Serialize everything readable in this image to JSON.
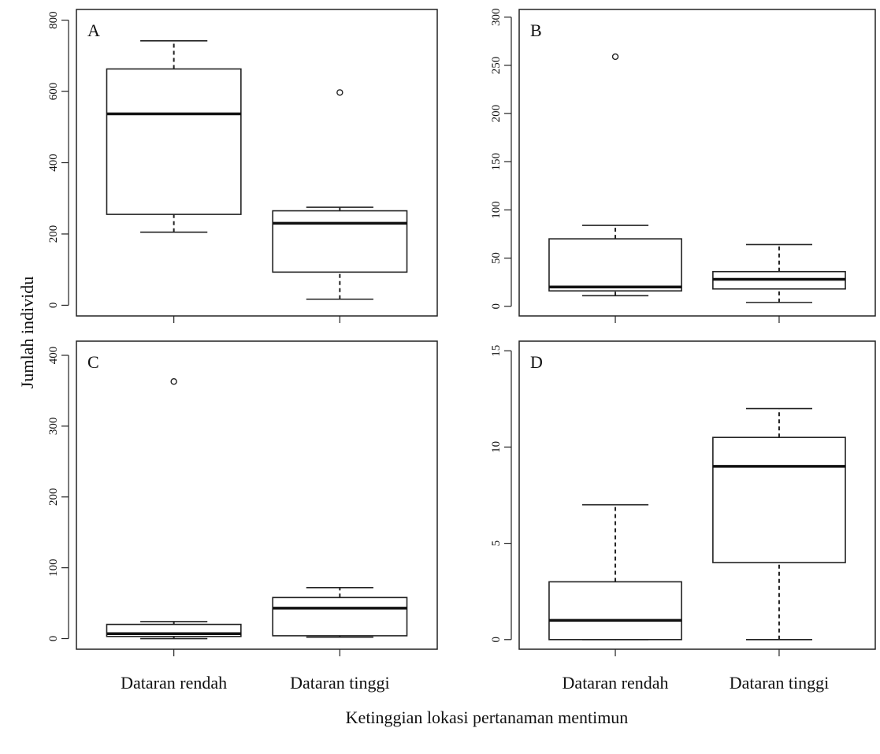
{
  "figure": {
    "ylabel": "Jumlah individu",
    "xlabel": "Ketinggian lokasi pertanaman mentimun"
  },
  "chart_data": [
    {
      "type": "boxplot",
      "panel": "A",
      "categories": [
        "Dataran rendah",
        "Dataran tinggi"
      ],
      "ylim": [
        -30,
        830
      ],
      "yticks": [
        0,
        200,
        400,
        600,
        800
      ],
      "boxes": [
        {
          "whisker_low": 205,
          "q1": 255,
          "median": 537,
          "q3": 663,
          "whisker_high": 742,
          "outliers": []
        },
        {
          "whisker_low": 17,
          "q1": 93,
          "median": 230,
          "q3": 265,
          "whisker_high": 275,
          "outliers": [
            597
          ]
        }
      ],
      "show_x_tick_labels": false
    },
    {
      "type": "boxplot",
      "panel": "B",
      "categories": [
        "Dataran rendah",
        "Dataran tinggi"
      ],
      "ylim": [
        -10,
        308
      ],
      "yticks": [
        0,
        50,
        100,
        150,
        200,
        250,
        300
      ],
      "boxes": [
        {
          "whisker_low": 11,
          "q1": 16,
          "median": 20,
          "q3": 70,
          "whisker_high": 84,
          "outliers": [
            259
          ]
        },
        {
          "whisker_low": 4,
          "q1": 18,
          "median": 28,
          "q3": 36,
          "whisker_high": 64,
          "outliers": []
        }
      ],
      "show_x_tick_labels": false
    },
    {
      "type": "boxplot",
      "panel": "C",
      "categories": [
        "Dataran rendah",
        "Dataran tinggi"
      ],
      "ylim": [
        -15,
        420
      ],
      "yticks": [
        0,
        100,
        200,
        300,
        400
      ],
      "boxes": [
        {
          "whisker_low": 0,
          "q1": 3,
          "median": 7,
          "q3": 20,
          "whisker_high": 24,
          "outliers": [
            363
          ]
        },
        {
          "whisker_low": 2,
          "q1": 4,
          "median": 43,
          "q3": 58,
          "whisker_high": 72,
          "outliers": []
        }
      ],
      "show_x_tick_labels": true
    },
    {
      "type": "boxplot",
      "panel": "D",
      "categories": [
        "Dataran rendah",
        "Dataran tinggi"
      ],
      "ylim": [
        -0.5,
        15.5
      ],
      "yticks": [
        0,
        5,
        10,
        15
      ],
      "boxes": [
        {
          "whisker_low": 0,
          "q1": 0,
          "median": 1,
          "q3": 3,
          "whisker_high": 7,
          "outliers": []
        },
        {
          "whisker_low": 0,
          "q1": 4,
          "median": 9,
          "q3": 10.5,
          "whisker_high": 12,
          "outliers": []
        }
      ],
      "show_x_tick_labels": true
    }
  ]
}
